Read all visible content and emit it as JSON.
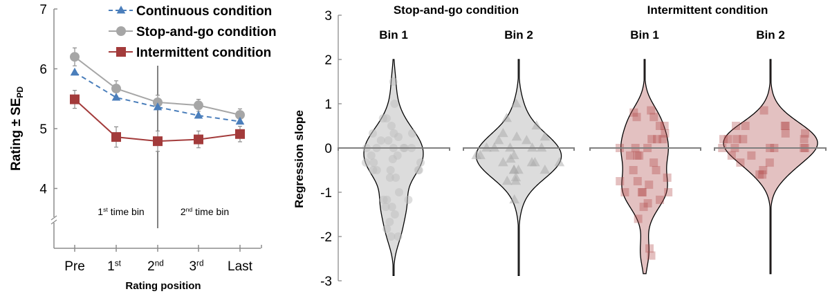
{
  "chart_data": [
    {
      "type": "line",
      "xlabel": "Rating position",
      "ylabel": "Rating ± SE",
      "ylabel_sub": "PD",
      "categories": [
        {
          "t": "Pre",
          "s": ""
        },
        {
          "t": "1",
          "s": "st"
        },
        {
          "t": "2",
          "s": "nd"
        },
        {
          "t": "3",
          "s": "rd"
        },
        {
          "t": "Last",
          "s": ""
        }
      ],
      "yticks": [
        "4",
        "5",
        "6",
        "7"
      ],
      "ylim": [
        3,
        7
      ],
      "axis_break": true,
      "annotations": [
        {
          "t": "1",
          "s": "st",
          "r": " time bin"
        },
        {
          "t": "2",
          "s": "nd",
          "r": " time bin"
        }
      ],
      "legend_position": "top-right",
      "series": [
        {
          "name": "Continuous condition",
          "color": "#4a7ebb",
          "marker": "triangle",
          "dash": true,
          "values": [
            5.94,
            5.52,
            5.36,
            5.22,
            5.12
          ],
          "err": [
            0,
            0,
            0,
            0,
            0
          ]
        },
        {
          "name": "Stop-and-go condition",
          "color": "#a6a6a6",
          "marker": "circle",
          "dash": false,
          "values": [
            6.2,
            5.67,
            5.44,
            5.39,
            5.23
          ],
          "err": [
            0.15,
            0.13,
            0.12,
            0.1,
            0.1
          ]
        },
        {
          "name": "Intermittent condition",
          "color": "#a33b3b",
          "marker": "square",
          "dash": false,
          "values": [
            5.49,
            4.86,
            4.79,
            4.82,
            4.91
          ],
          "err": [
            0.15,
            0.17,
            0.17,
            0.14,
            0.13
          ]
        }
      ]
    },
    {
      "type": "violin",
      "ylabel": "Regression slope",
      "ylim": [
        -3,
        3
      ],
      "yticks": [
        "-3",
        "-2",
        "-1",
        "0",
        "1",
        "2",
        "3"
      ],
      "groups": [
        {
          "title": "Stop-and-go condition",
          "bins": [
            {
              "label": "Bin 1",
              "marker": "circle",
              "fill": "#dcdcdc",
              "point": "#bdbdbd",
              "range": [
                -2.9,
                2.0
              ],
              "points": [
                1.5,
                1.0,
                0.67,
                0.67,
                0.5,
                0.33,
                0.33,
                0.33,
                0.25,
                0.17,
                0.17,
                0,
                0,
                0,
                0,
                0,
                0,
                -0.17,
                -0.17,
                -0.25,
                -0.33,
                -0.33,
                -0.33,
                -0.5,
                -0.5,
                -0.5,
                -0.5,
                -0.5,
                -0.67,
                -0.67,
                -1,
                -1.17,
                -1.17,
                -1.17,
                -1.33,
                -1.33,
                -1.5,
                -1.67,
                -1.83,
                -2,
                -2
              ]
            },
            {
              "label": "Bin 2",
              "marker": "triangle",
              "fill": "#dcdcdc",
              "point": "#a8a8a8",
              "range": [
                -2.9,
                2.0
              ],
              "points": [
                1.0,
                0.67,
                0.5,
                0.33,
                0.25,
                0.25,
                0.17,
                0.17,
                0,
                0,
                0,
                0,
                0,
                -0.17,
                -0.17,
                -0.17,
                -0.25,
                -0.33,
                -0.33,
                -0.33,
                -0.33,
                -0.5,
                -0.5,
                -0.5,
                -0.5,
                -0.67,
                -0.75,
                -0.75,
                -1.17
              ]
            }
          ]
        },
        {
          "title": "Intermittent condition",
          "bins": [
            {
              "label": "Bin 1",
              "marker": "square",
              "fill": "#e3c1c1",
              "point": "#b24a4a",
              "range": [
                -2.85,
                2.0
              ],
              "points": [
                0.85,
                0.8,
                0.7,
                0.7,
                0.5,
                0.5,
                0.33,
                0.2,
                0.2,
                0.2,
                0,
                0,
                0,
                -0.17,
                -0.17,
                -0.17,
                -0.33,
                -0.5,
                -0.5,
                -0.67,
                -0.75,
                -0.75,
                -0.83,
                -1,
                -1,
                -1,
                -1,
                -1.17,
                -1.25,
                -1.33,
                -1.6,
                -2.27,
                -2.43
              ]
            },
            {
              "label": "Bin 2",
              "marker": "square",
              "fill": "#e3c1c1",
              "point": "#b24a4a",
              "range": [
                -2.85,
                2.0
              ],
              "points": [
                0.85,
                0.5,
                0.5,
                0.5,
                0.5,
                0.33,
                0.33,
                0.2,
                0.2,
                0.2,
                0.2,
                0.2,
                0,
                0,
                0,
                0,
                0,
                0,
                -0.17,
                -0.17,
                -0.33,
                -0.33,
                -0.5,
                -0.6,
                -0.6
              ]
            }
          ]
        }
      ]
    }
  ]
}
